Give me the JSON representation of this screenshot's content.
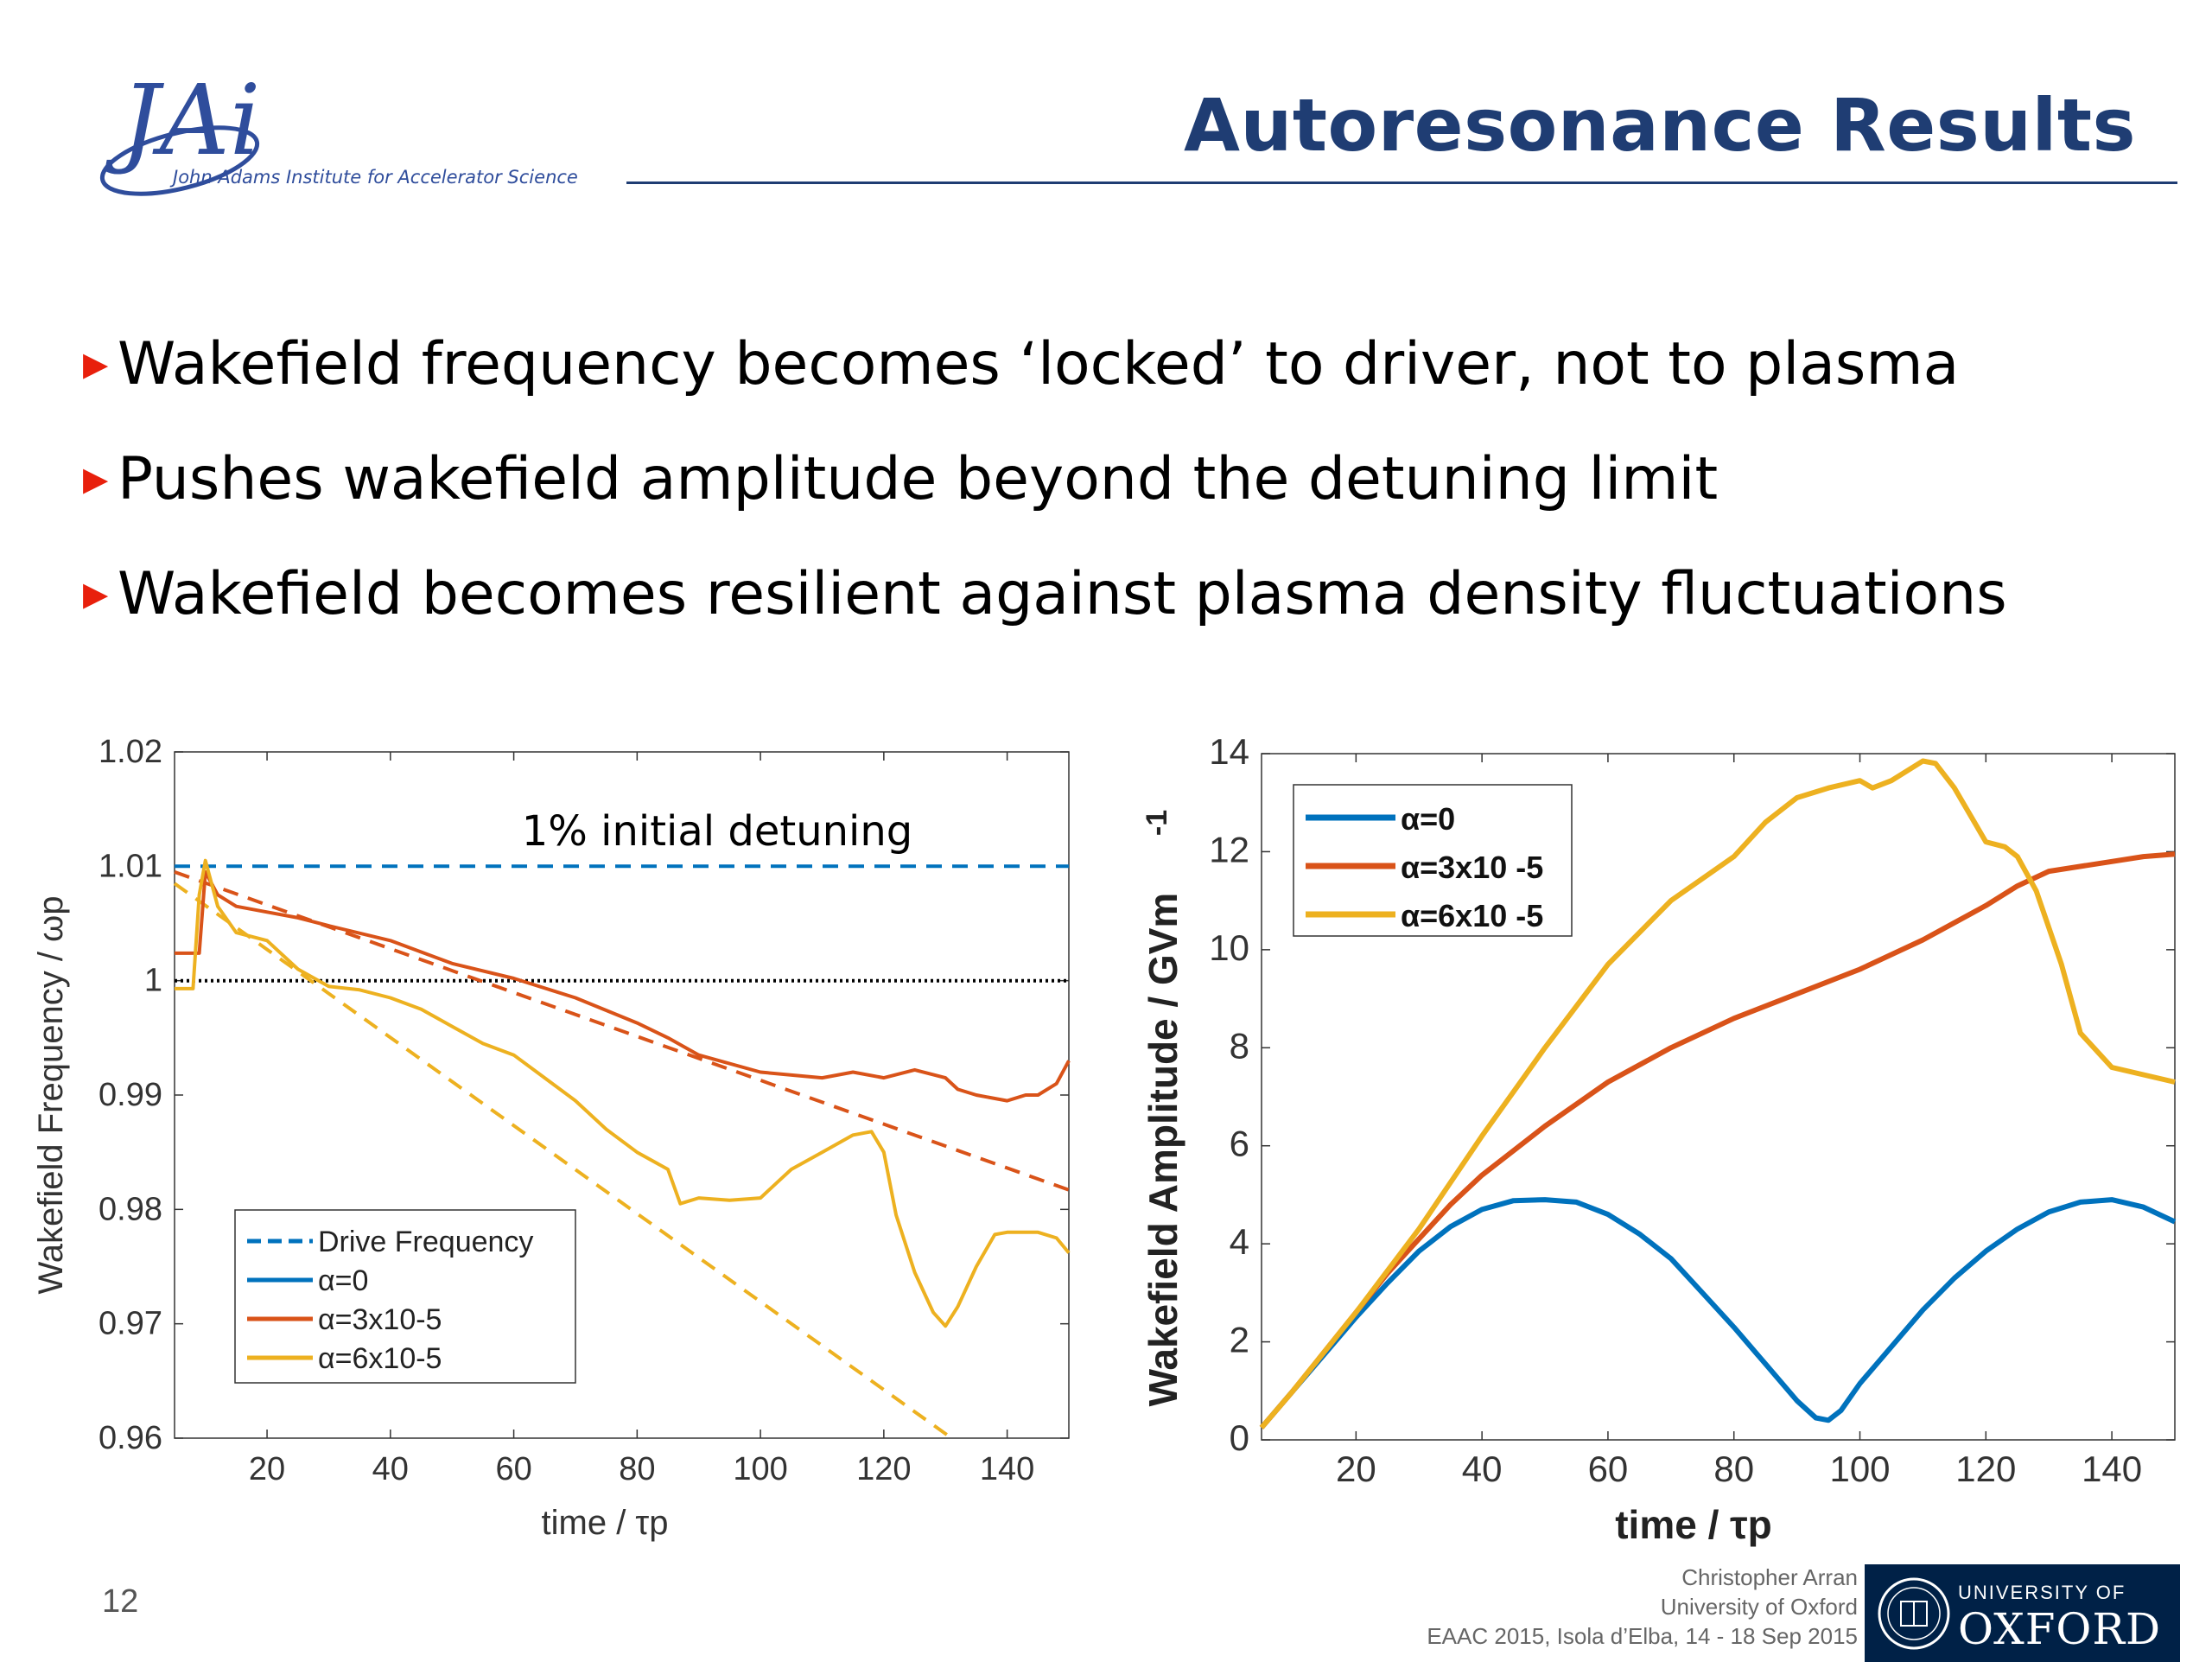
{
  "header": {
    "title": "Autoresonance Results",
    "logo_text": "JAi",
    "logo_subtitle": "John Adams Institute for Accelerator Science"
  },
  "bullets": [
    "Wakefield frequency becomes ‘locked’ to driver, not to plasma",
    "Pushes wakefield amplitude beyond the detuning limit",
    "Wakefield becomes resilient against plasma density fluctuations"
  ],
  "colors": {
    "blue": "#0072bd",
    "red": "#d95319",
    "yellow": "#edb120",
    "title": "#1f3d73",
    "bullet_marker": "#e8200c"
  },
  "chart_data": [
    {
      "type": "line",
      "xlabel": "time / τp",
      "ylabel": "Wakefield Frequency / ωp",
      "xlim": [
        5,
        150
      ],
      "ylim": [
        0.96,
        1.02
      ],
      "xticks": [
        20,
        40,
        60,
        80,
        100,
        120,
        140
      ],
      "yticks": [
        "0.96",
        "0.97",
        "0.98",
        "0.99",
        "1",
        "1.01",
        "1.02"
      ],
      "annotation": "1% initial detuning",
      "legend_position": "bottom-left",
      "legend": [
        "Drive Frequency",
        "α=0",
        "α=3x10-5",
        "α=6x10-5"
      ],
      "series": [
        {
          "name": "Drive Frequency",
          "color": "blue",
          "dash": true,
          "x": [
            5,
            150
          ],
          "y": [
            1.01,
            1.01
          ]
        },
        {
          "name": "unity",
          "color": "black",
          "dotted": true,
          "x": [
            5,
            150
          ],
          "y": [
            1.0,
            1.0
          ]
        },
        {
          "name": "α=3x10-5 driver",
          "color": "red",
          "dash": true,
          "x": [
            5,
            150
          ],
          "y": [
            1.0095,
            0.9817
          ]
        },
        {
          "name": "α=6x10-5 driver",
          "color": "yellow",
          "dash": true,
          "x": [
            5,
            131
          ],
          "y": [
            1.0085,
            0.96
          ]
        },
        {
          "name": "α=3x10-5",
          "color": "red",
          "x": [
            5,
            7,
            9,
            10,
            12,
            15,
            20,
            25,
            30,
            40,
            50,
            60,
            70,
            80,
            85,
            90,
            100,
            110,
            115,
            120,
            125,
            130,
            132,
            135,
            140,
            143,
            145,
            148,
            150
          ],
          "y": [
            1.0024,
            1.0024,
            1.0024,
            1.0095,
            1.0075,
            1.0065,
            1.006,
            1.0055,
            1.0048,
            1.0035,
            1.0015,
            1.0002,
            0.9985,
            0.9963,
            0.995,
            0.9935,
            0.992,
            0.9915,
            0.992,
            0.9915,
            0.9922,
            0.9915,
            0.9905,
            0.99,
            0.9895,
            0.99,
            0.99,
            0.991,
            0.993
          ]
        },
        {
          "name": "α=6x10-5",
          "color": "yellow",
          "x": [
            5,
            7,
            8,
            9,
            10,
            12,
            15,
            20,
            25,
            30,
            35,
            40,
            45,
            50,
            55,
            60,
            65,
            70,
            75,
            80,
            85,
            87,
            90,
            95,
            100,
            103,
            105,
            110,
            115,
            118,
            120,
            122,
            125,
            128,
            130,
            132,
            135,
            138,
            140,
            145,
            148,
            150
          ],
          "y": [
            0.9993,
            0.9993,
            0.9993,
            1.0075,
            1.0105,
            1.0065,
            1.0042,
            1.0035,
            1.001,
            0.9995,
            0.9992,
            0.9985,
            0.9975,
            0.996,
            0.9945,
            0.9935,
            0.9915,
            0.9895,
            0.987,
            0.985,
            0.9835,
            0.9805,
            0.981,
            0.9808,
            0.981,
            0.9825,
            0.9835,
            0.985,
            0.9865,
            0.9868,
            0.985,
            0.9795,
            0.9745,
            0.971,
            0.9698,
            0.9715,
            0.975,
            0.9778,
            0.978,
            0.978,
            0.9775,
            0.9762
          ]
        }
      ]
    },
    {
      "type": "line",
      "xlabel": "time /   τp",
      "ylabel": "Wakefield Amplitude / GVm",
      "ylabel_sup": "-1",
      "xlim": [
        5,
        150
      ],
      "ylim": [
        0,
        14
      ],
      "xticks": [
        20,
        40,
        60,
        80,
        100,
        120,
        140
      ],
      "yticks": [
        0,
        2,
        4,
        6,
        8,
        10,
        12,
        14
      ],
      "legend_position": "top-left",
      "legend": [
        "α=0",
        "α=3x10 -5",
        "α=6x10 -5"
      ],
      "series": [
        {
          "name": "α=0",
          "color": "blue",
          "x": [
            5,
            10,
            15,
            20,
            25,
            30,
            35,
            40,
            45,
            50,
            55,
            60,
            65,
            70,
            75,
            80,
            85,
            90,
            93,
            95,
            97,
            100,
            105,
            110,
            115,
            120,
            125,
            130,
            135,
            140,
            145,
            150
          ],
          "y": [
            0.25,
            1.0,
            1.75,
            2.5,
            3.2,
            3.85,
            4.35,
            4.7,
            4.88,
            4.9,
            4.85,
            4.6,
            4.2,
            3.7,
            3.0,
            2.3,
            1.55,
            0.8,
            0.45,
            0.4,
            0.6,
            1.15,
            1.9,
            2.65,
            3.3,
            3.85,
            4.3,
            4.65,
            4.85,
            4.9,
            4.75,
            4.45
          ]
        },
        {
          "name": "α=3x10 -5",
          "color": "red",
          "x": [
            5,
            10,
            15,
            20,
            25,
            30,
            35,
            40,
            45,
            50,
            60,
            70,
            80,
            90,
            100,
            110,
            120,
            125,
            130,
            140,
            145,
            150
          ],
          "y": [
            0.25,
            1.0,
            1.8,
            2.6,
            3.4,
            4.1,
            4.8,
            5.4,
            5.9,
            6.4,
            7.3,
            8.0,
            8.6,
            9.1,
            9.6,
            10.2,
            10.9,
            11.3,
            11.6,
            11.8,
            11.9,
            11.95
          ]
        },
        {
          "name": "α=6x10 -5",
          "color": "yellow",
          "x": [
            5,
            10,
            20,
            30,
            40,
            50,
            60,
            70,
            80,
            85,
            90,
            95,
            100,
            102,
            105,
            110,
            112,
            115,
            120,
            123,
            125,
            128,
            132,
            135,
            140,
            145,
            150
          ],
          "y": [
            0.25,
            1.0,
            2.6,
            4.3,
            6.2,
            8.0,
            9.7,
            11.0,
            11.9,
            12.6,
            13.1,
            13.3,
            13.45,
            13.3,
            13.45,
            13.85,
            13.8,
            13.3,
            12.2,
            12.1,
            11.9,
            11.2,
            9.7,
            8.3,
            7.6,
            7.45,
            7.3
          ]
        }
      ]
    }
  ],
  "footer": {
    "page_number": "12",
    "credit_lines": [
      "Christopher Arran",
      "University of Oxford",
      "EAAC 2015, Isola d’Elba, 14 - 18 Sep 2015"
    ],
    "oxford_top": "UNIVERSITY OF",
    "oxford_bottom": "OXFORD"
  }
}
